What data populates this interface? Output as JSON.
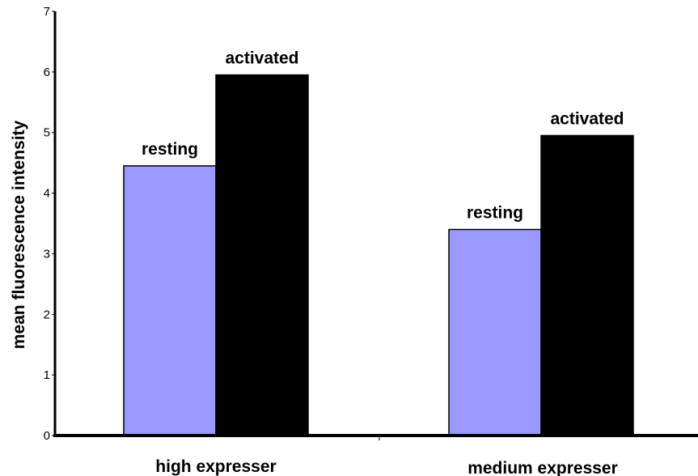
{
  "chart_data": {
    "type": "bar",
    "categories": [
      "high expresser",
      "medium expresser"
    ],
    "series": [
      {
        "name": "resting",
        "values": [
          4.45,
          3.4
        ],
        "color": "#9999ff"
      },
      {
        "name": "activated",
        "values": [
          5.95,
          4.95
        ],
        "color": "#000000"
      }
    ],
    "bar_labels": [
      [
        "resting",
        "activated"
      ],
      [
        "resting",
        "activated"
      ]
    ],
    "ylabel": "mean fluorescence intensity",
    "xlabel": "",
    "yticks": [
      "0",
      "1",
      "2",
      "3",
      "4",
      "5",
      "6",
      "7"
    ],
    "ylim": [
      0,
      7
    ],
    "grid": false,
    "legend": "none"
  }
}
